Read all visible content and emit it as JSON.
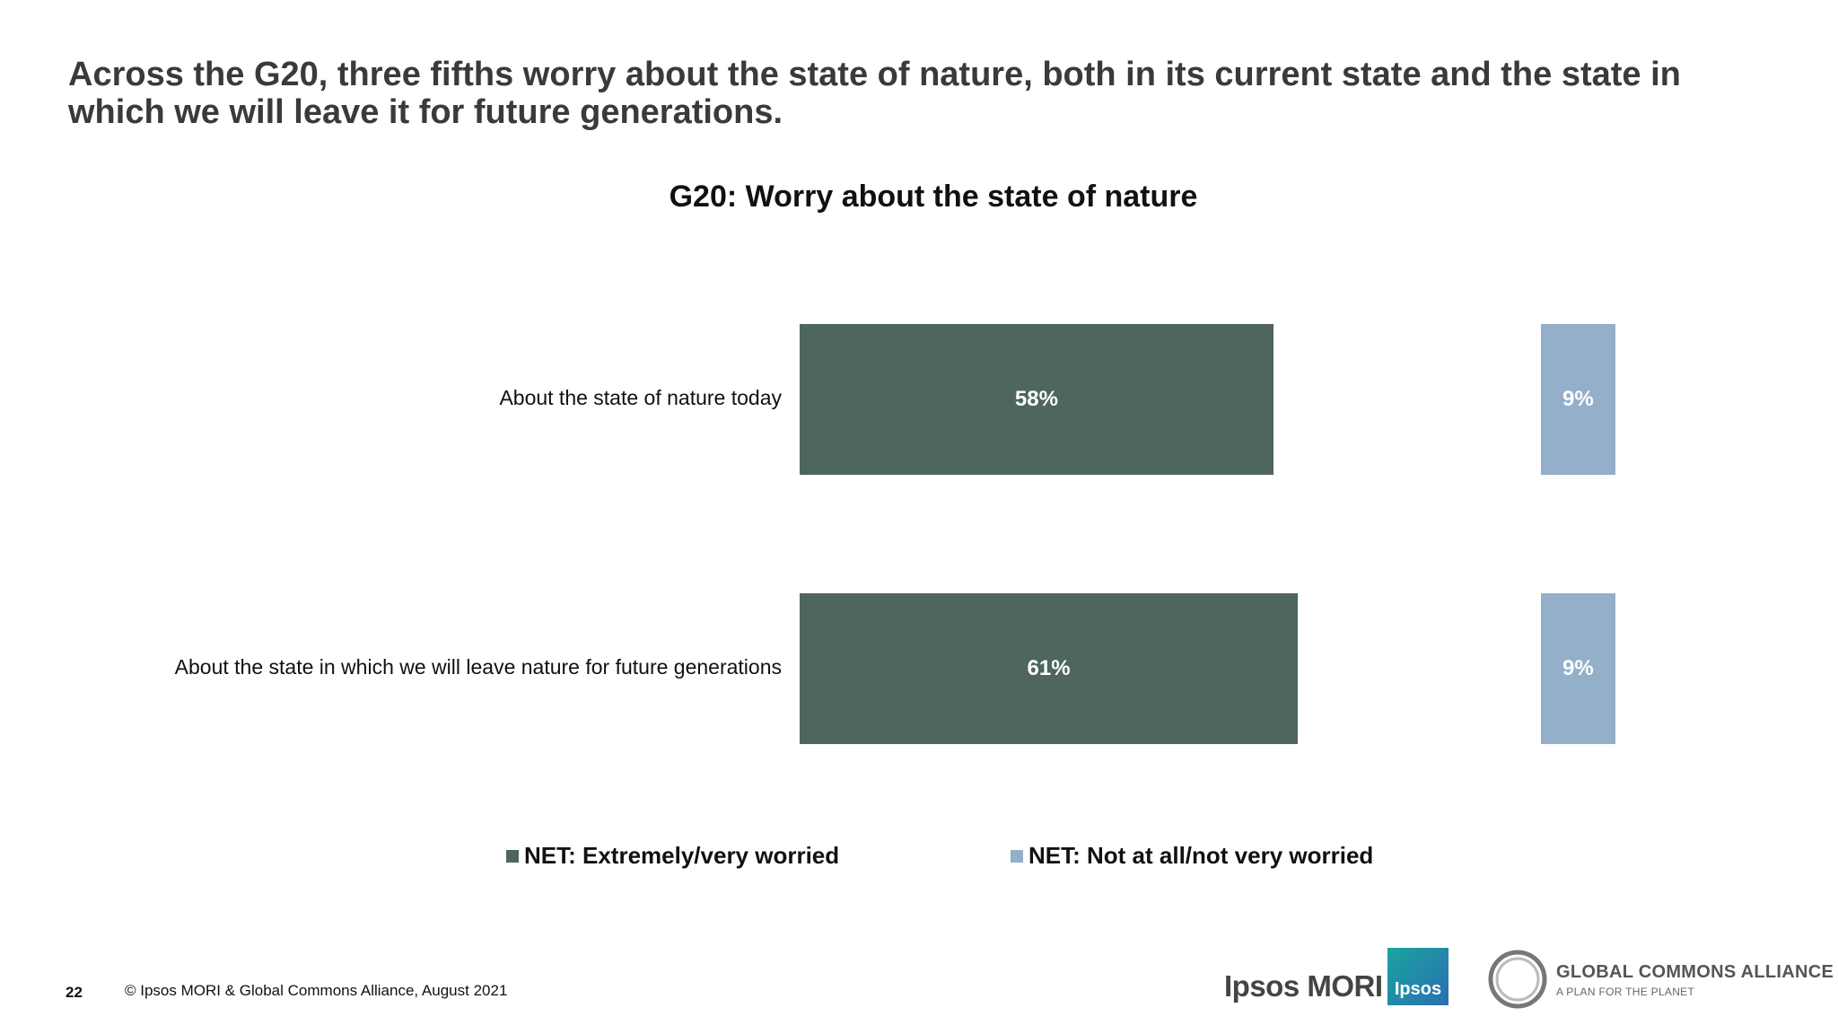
{
  "slide": {
    "title": "Across the G20, three fifths worry about the state of nature, both in its current state and the state in which we will leave it for future generations.",
    "page_number": "22",
    "copyright": "© Ipsos MORI & Global Commons Alliance, August 2021"
  },
  "logos": {
    "ipsos_mori": "Ipsos MORI",
    "ipsos_badge": "Ipsos",
    "gca_name": "GLOBAL COMMONS ALLIANCE",
    "gca_tagline": "A PLAN FOR THE PLANET"
  },
  "colors": {
    "worried": "#4e665c",
    "not_worried": "#93afc9"
  },
  "chart_data": {
    "type": "bar",
    "orientation": "horizontal",
    "title": "G20: Worry about the state of nature",
    "categories": [
      "About the state of nature today",
      "About the state in which we will leave nature for future generations"
    ],
    "series": [
      {
        "name": "NET: Extremely/very worried",
        "values": [
          58,
          61
        ],
        "labels": [
          "58%",
          "61%"
        ]
      },
      {
        "name": "NET: Not at all/not very worried",
        "values": [
          9,
          9
        ],
        "labels": [
          "9%",
          "9%"
        ]
      }
    ],
    "unit": "%",
    "legend": "bottom",
    "grid": false
  }
}
